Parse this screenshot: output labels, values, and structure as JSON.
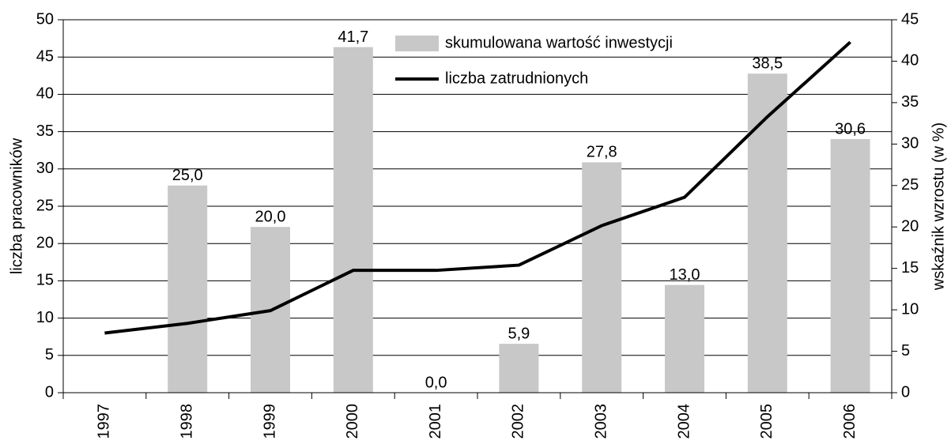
{
  "chart_data": {
    "type": "bar_line",
    "categories": [
      "1997",
      "1998",
      "1999",
      "2000",
      "2001",
      "2002",
      "2003",
      "2004",
      "2005",
      "2006"
    ],
    "series": [
      {
        "name": "skumulowana wartość inwestycji",
        "type": "bar",
        "axis": "y2",
        "color": "#c8c8c8",
        "values": [
          null,
          25,
          20,
          41.7,
          0,
          5.9,
          27.8,
          13,
          38.5,
          30.6
        ],
        "value_labels": [
          null,
          "25,0",
          "20,0",
          "41,7",
          "0,0",
          "5,9",
          "27,8",
          "13,0",
          "38,5",
          "30,6"
        ]
      },
      {
        "name": "liczba zatrudnionych",
        "type": "line",
        "axis": "y",
        "color": "#000000",
        "values": [
          8,
          9.3,
          11,
          16.4,
          16.4,
          17.1,
          22.4,
          26.2,
          37,
          47
        ]
      }
    ],
    "y_label": "liczba pracowników",
    "y2_label": "wskaźnik wzrostu (w %)",
    "ylim": [
      0,
      50
    ],
    "yticks": [
      0,
      5,
      10,
      15,
      20,
      25,
      30,
      35,
      40,
      45,
      50
    ],
    "y2lim": [
      0,
      45
    ],
    "y2ticks": [
      0,
      5,
      10,
      15,
      20,
      25,
      30,
      35,
      40,
      45
    ],
    "grid": true
  }
}
